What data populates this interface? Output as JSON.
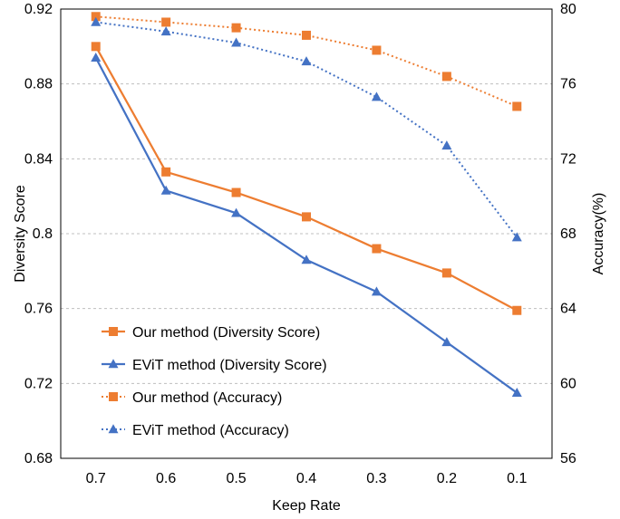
{
  "chart_data": {
    "type": "line",
    "xlabel": "Keep Rate",
    "ylabel_left": "Diversity Score",
    "ylabel_right": "Accuracy(%)",
    "categories": [
      "0.7",
      "0.6",
      "0.5",
      "0.4",
      "0.3",
      "0.2",
      "0.1"
    ],
    "y_left": {
      "min": 0.68,
      "max": 0.92,
      "ticks": [
        "0.68",
        "0.72",
        "0.76",
        "0.8",
        "0.84",
        "0.88",
        "0.92"
      ]
    },
    "y_right": {
      "min": 56,
      "max": 80,
      "ticks": [
        "56",
        "60",
        "64",
        "68",
        "72",
        "76",
        "80"
      ]
    },
    "grid": true,
    "legend_position": "bottom-left",
    "series": [
      {
        "name": "Our method (Diversity Score)",
        "axis": "left",
        "style": "solid",
        "marker": "square",
        "color": "#ED7D31",
        "values": [
          0.9,
          0.833,
          0.822,
          0.809,
          0.792,
          0.779,
          0.759
        ]
      },
      {
        "name": "EViT method (Diversity Score)",
        "axis": "left",
        "style": "solid",
        "marker": "triangle",
        "color": "#4472C4",
        "values": [
          0.894,
          0.823,
          0.811,
          0.786,
          0.769,
          0.742,
          0.715
        ]
      },
      {
        "name": "Our method (Accuracy)",
        "axis": "right",
        "style": "dotted",
        "marker": "square",
        "color": "#ED7D31",
        "values": [
          79.6,
          79.3,
          79.0,
          78.6,
          77.8,
          76.4,
          74.8
        ]
      },
      {
        "name": "EViT method (Accuracy)",
        "axis": "right",
        "style": "dotted",
        "marker": "triangle",
        "color": "#4472C4",
        "values": [
          79.3,
          78.8,
          78.2,
          77.2,
          75.3,
          72.7,
          67.8
        ]
      }
    ]
  }
}
